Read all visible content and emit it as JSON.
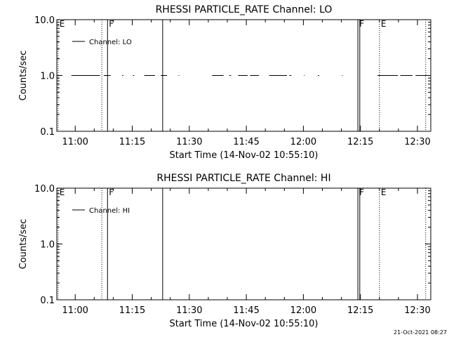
{
  "footer": {
    "timestamp": "21-Oct-2021 08:27"
  },
  "chart_data": [
    {
      "type": "line",
      "title": "RHESSI PARTICLE_RATE Channel: LO",
      "xlabel": "Start Time (14-Nov-02 10:55:10)",
      "ylabel": "Counts/sec",
      "yscale": "log",
      "ylim": [
        0.1,
        10.0
      ],
      "xlim": [
        "10:55:10",
        "12:33:30"
      ],
      "x_ticks": [
        "11:00",
        "11:15",
        "11:30",
        "11:45",
        "12:00",
        "12:15",
        "12:30"
      ],
      "y_ticks": [
        "0.1",
        "1.0",
        "10.0"
      ],
      "legend": {
        "position": "top-left",
        "entries": [
          "Channel: LO"
        ]
      },
      "series": [
        {
          "name": "Channel: LO",
          "y": 1.0,
          "segments": [
            [
              "10:59:00",
              "11:06:30"
            ],
            [
              "11:07:30",
              "11:09:20"
            ],
            [
              "11:12:20",
              "11:12:40"
            ],
            [
              "11:15:10",
              "11:15:30"
            ],
            [
              "11:18:10",
              "11:21:00"
            ],
            [
              "11:22:30",
              "11:24:10"
            ],
            [
              "11:27:10",
              "11:27:20"
            ],
            [
              "11:36:00",
              "11:39:00"
            ],
            [
              "11:40:30",
              "11:41:00"
            ],
            [
              "11:42:50",
              "11:45:20"
            ],
            [
              "11:46:00",
              "11:48:20"
            ],
            [
              "11:51:00",
              "11:55:40"
            ],
            [
              "11:56:20",
              "11:56:50"
            ],
            [
              "12:00:10",
              "12:00:20"
            ],
            [
              "12:03:50",
              "12:04:10"
            ],
            [
              "12:10:10",
              "12:10:20"
            ],
            [
              "12:19:30",
              "12:24:50"
            ],
            [
              "12:25:30",
              "12:28:40"
            ],
            [
              "12:29:30",
              "12:32:30"
            ]
          ]
        }
      ],
      "markers": [
        {
          "time": "10:55:30",
          "style": "dotted",
          "label": "E"
        },
        {
          "time": "11:07:00",
          "style": "dotted",
          "label": ""
        },
        {
          "time": "11:08:30",
          "style": "solid",
          "label": "F"
        },
        {
          "time": "11:23:00",
          "style": "solid",
          "label": ""
        },
        {
          "time": "12:14:20",
          "style": "solid",
          "label": "F"
        },
        {
          "time": "12:14:50",
          "style": "solid",
          "label": ""
        },
        {
          "time": "12:20:00",
          "style": "dotted",
          "label": "E"
        },
        {
          "time": "12:32:10",
          "style": "dotted",
          "label": ""
        }
      ]
    },
    {
      "type": "line",
      "title": "RHESSI PARTICLE_RATE Channel: HI",
      "xlabel": "Start Time (14-Nov-02 10:55:10)",
      "ylabel": "Counts/sec",
      "yscale": "log",
      "ylim": [
        0.1,
        10.0
      ],
      "xlim": [
        "10:55:10",
        "12:33:30"
      ],
      "x_ticks": [
        "11:00",
        "11:15",
        "11:30",
        "11:45",
        "12:00",
        "12:15",
        "12:30"
      ],
      "y_ticks": [
        "0.1",
        "1.0",
        "10.0"
      ],
      "legend": {
        "position": "top-left",
        "entries": [
          "Channel: HI"
        ]
      },
      "series": [
        {
          "name": "Channel: HI",
          "y": null,
          "segments": []
        }
      ],
      "markers": [
        {
          "time": "10:55:30",
          "style": "dotted",
          "label": "E"
        },
        {
          "time": "11:07:00",
          "style": "dotted",
          "label": ""
        },
        {
          "time": "11:08:30",
          "style": "solid",
          "label": "F"
        },
        {
          "time": "11:23:00",
          "style": "solid",
          "label": ""
        },
        {
          "time": "12:14:20",
          "style": "solid",
          "label": "F"
        },
        {
          "time": "12:14:50",
          "style": "solid",
          "label": ""
        },
        {
          "time": "12:20:00",
          "style": "dotted",
          "label": "E"
        },
        {
          "time": "12:32:10",
          "style": "dotted",
          "label": ""
        }
      ]
    }
  ]
}
